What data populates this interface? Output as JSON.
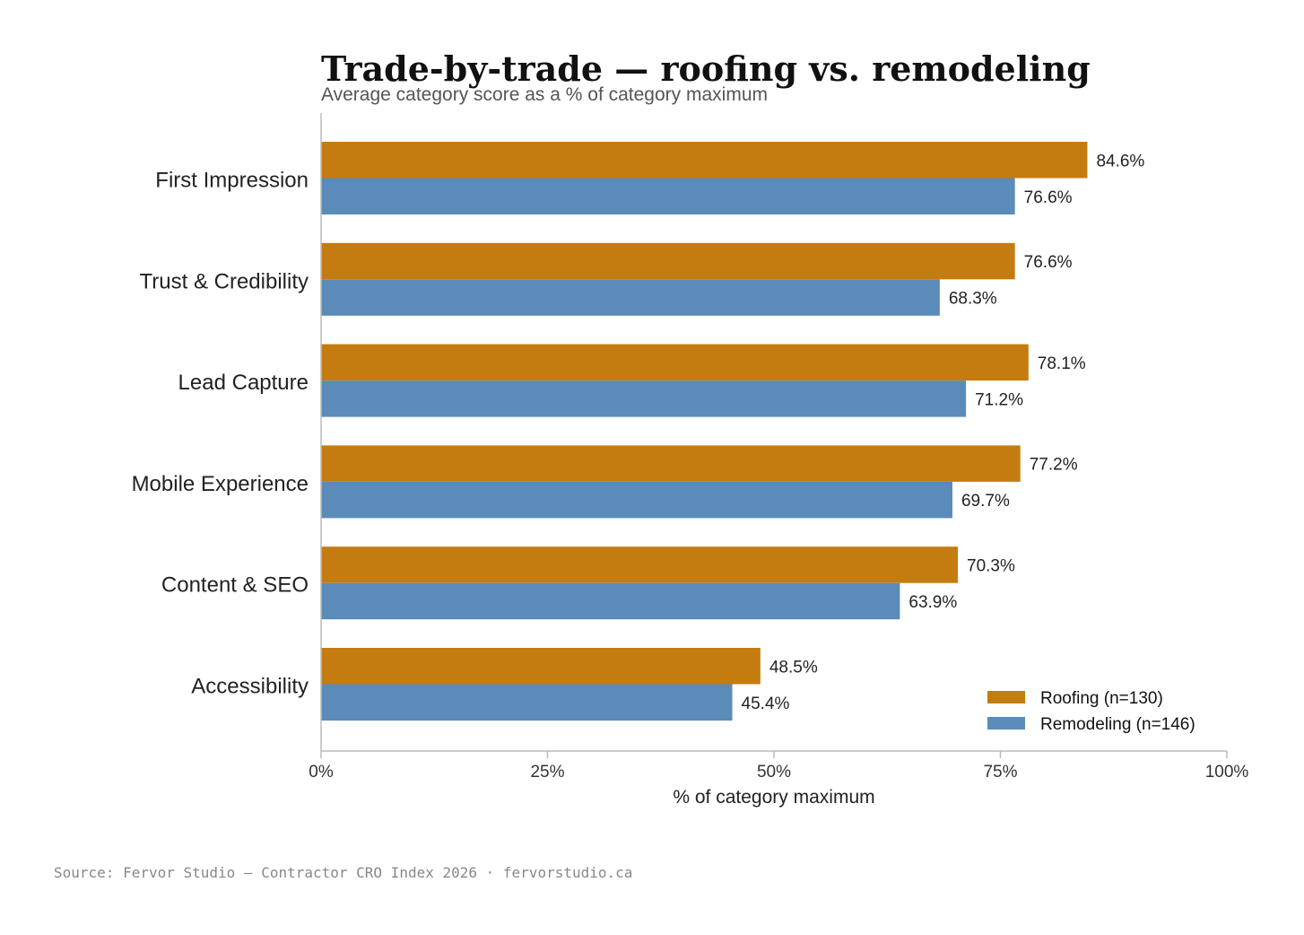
{
  "chart_data": {
    "type": "bar",
    "orientation": "horizontal",
    "title": "Trade-by-trade — roofing vs. remodeling",
    "subtitle": "Average category score as a % of category maximum",
    "xlabel": "% of category maximum",
    "ylabel": "",
    "xlim": [
      0,
      100
    ],
    "x_ticks": [
      0,
      25,
      50,
      75,
      100
    ],
    "x_tick_labels": [
      "0%",
      "25%",
      "50%",
      "75%",
      "100%"
    ],
    "grid": false,
    "legend_position": "bottom-right",
    "categories": [
      "First Impression",
      "Trust & Credibility",
      "Lead Capture",
      "Mobile Experience",
      "Content & SEO",
      "Accessibility"
    ],
    "series": [
      {
        "name": "Roofing (n=130)",
        "color": "#c47c10",
        "values": [
          84.6,
          76.6,
          78.1,
          77.2,
          70.3,
          48.5
        ],
        "value_labels": [
          "84.6%",
          "76.6%",
          "78.1%",
          "77.2%",
          "70.3%",
          "48.5%"
        ]
      },
      {
        "name": "Remodeling (n=146)",
        "color": "#5b8bb8",
        "values": [
          76.6,
          68.3,
          71.2,
          69.7,
          63.9,
          45.4
        ],
        "value_labels": [
          "76.6%",
          "68.3%",
          "71.2%",
          "69.7%",
          "63.9%",
          "45.4%"
        ]
      }
    ]
  },
  "source_note": "Source: Fervor Studio — Contractor CRO Index 2026 · fervorstudio.ca"
}
